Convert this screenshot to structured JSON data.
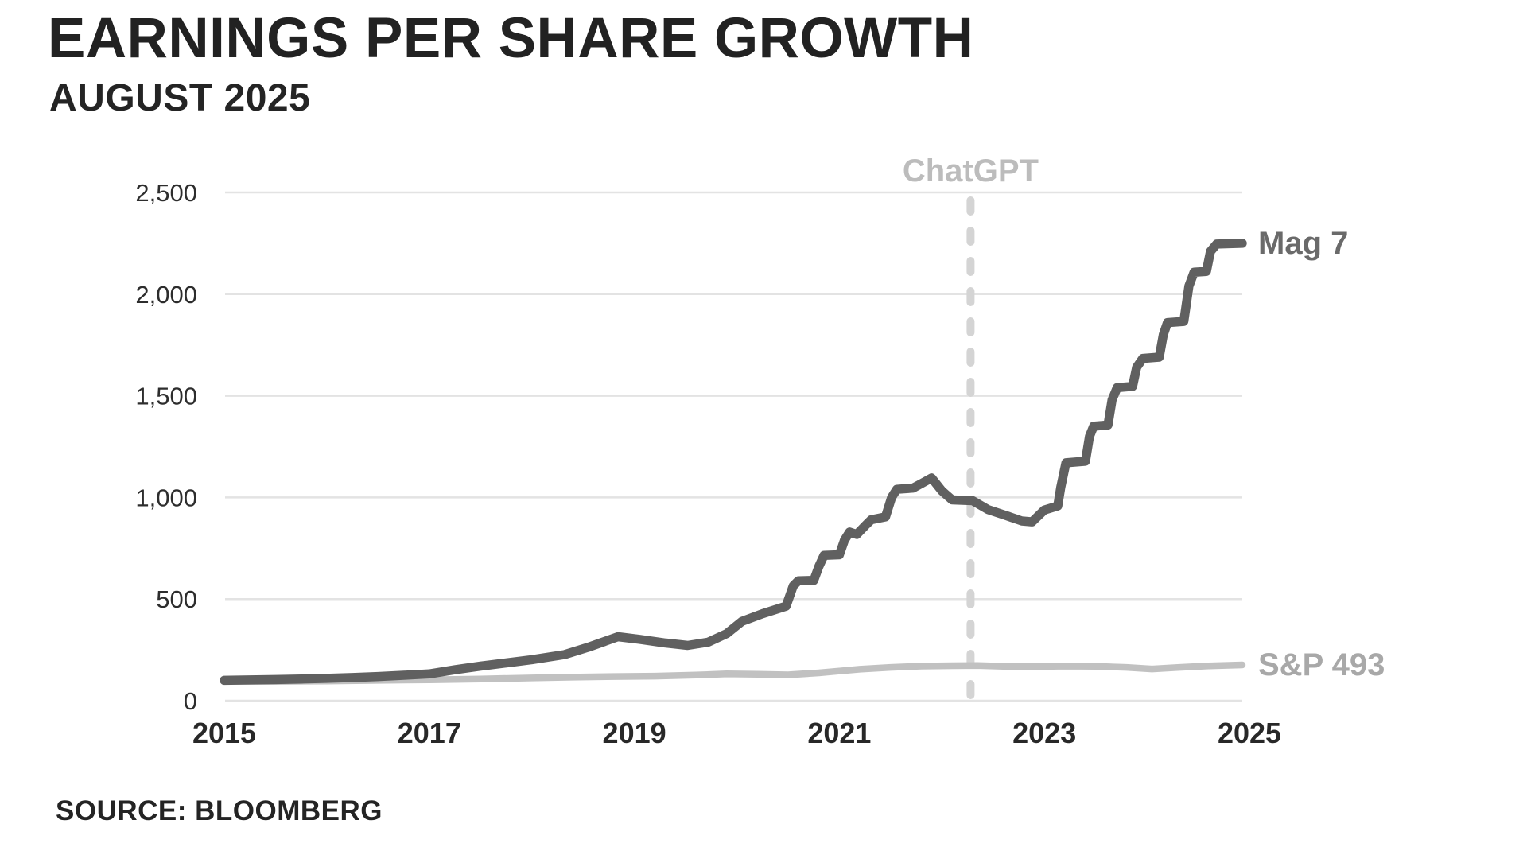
{
  "header": {
    "title": "EARNINGS PER SHARE GROWTH",
    "subtitle": "AUGUST 2025"
  },
  "footer": {
    "source": "SOURCE: BLOOMBERG"
  },
  "colors": {
    "background": "#ffffff",
    "grid": "#e3e3e3",
    "annotation_line": "#d4d4d4",
    "annotation_text": "#bcbcbc",
    "mag7_line": "#606060",
    "mag7_label": "#6a6a6a",
    "sp493_line": "#c1c1c1",
    "sp493_label": "#a8a8a8",
    "tick_text": "#2d2d2d"
  },
  "chart_data": {
    "type": "line",
    "title": "EARNINGS PER SHARE GROWTH",
    "subtitle": "AUGUST 2025",
    "source": "SOURCE: BLOOMBERG",
    "xlabel": "",
    "ylabel": "",
    "xlim": [
      2015,
      2024.95
    ],
    "ylim": [
      0,
      2500
    ],
    "grid": true,
    "legend_position": "inline-right",
    "x_ticks": [
      2015,
      2017,
      2019,
      2021,
      2023,
      2025
    ],
    "y_ticks": [
      0,
      500,
      1000,
      1500,
      2000,
      2500
    ],
    "y_tick_labels": [
      "0",
      "500",
      "1,000",
      "1,500",
      "2,000",
      "2,500"
    ],
    "annotation": {
      "label": "ChatGPT",
      "x": 2022.28,
      "style": "vertical-dashed-line"
    },
    "series": [
      {
        "name": "Mag 7",
        "points": [
          [
            2015.0,
            100
          ],
          [
            2015.25,
            102
          ],
          [
            2015.5,
            104
          ],
          [
            2015.75,
            107
          ],
          [
            2016.0,
            110
          ],
          [
            2016.25,
            114
          ],
          [
            2016.5,
            119
          ],
          [
            2016.75,
            125
          ],
          [
            2017.0,
            132
          ],
          [
            2017.25,
            152
          ],
          [
            2017.5,
            170
          ],
          [
            2017.75,
            186
          ],
          [
            2018.0,
            202
          ],
          [
            2018.32,
            227
          ],
          [
            2018.55,
            263
          ],
          [
            2018.84,
            315
          ],
          [
            2019.05,
            302
          ],
          [
            2019.3,
            284
          ],
          [
            2019.52,
            272
          ],
          [
            2019.72,
            288
          ],
          [
            2019.9,
            330
          ],
          [
            2020.05,
            390
          ],
          [
            2020.25,
            428
          ],
          [
            2020.48,
            465
          ],
          [
            2020.55,
            565
          ],
          [
            2020.6,
            590
          ],
          [
            2020.75,
            592
          ],
          [
            2020.8,
            660
          ],
          [
            2020.85,
            715
          ],
          [
            2021.0,
            718
          ],
          [
            2021.05,
            790
          ],
          [
            2021.1,
            830
          ],
          [
            2021.17,
            818
          ],
          [
            2021.25,
            860
          ],
          [
            2021.31,
            890
          ],
          [
            2021.45,
            904
          ],
          [
            2021.51,
            1000
          ],
          [
            2021.56,
            1040
          ],
          [
            2021.72,
            1046
          ],
          [
            2021.8,
            1068
          ],
          [
            2021.9,
            1096
          ],
          [
            2022.0,
            1032
          ],
          [
            2022.1,
            988
          ],
          [
            2022.3,
            984
          ],
          [
            2022.45,
            940
          ],
          [
            2022.62,
            912
          ],
          [
            2022.78,
            884
          ],
          [
            2022.88,
            880
          ],
          [
            2023.0,
            938
          ],
          [
            2023.13,
            958
          ],
          [
            2023.16,
            1050
          ],
          [
            2023.21,
            1170
          ],
          [
            2023.4,
            1178
          ],
          [
            2023.44,
            1300
          ],
          [
            2023.48,
            1350
          ],
          [
            2023.62,
            1356
          ],
          [
            2023.66,
            1480
          ],
          [
            2023.71,
            1540
          ],
          [
            2023.86,
            1546
          ],
          [
            2023.9,
            1640
          ],
          [
            2023.96,
            1684
          ],
          [
            2024.12,
            1690
          ],
          [
            2024.16,
            1800
          ],
          [
            2024.2,
            1860
          ],
          [
            2024.36,
            1866
          ],
          [
            2024.41,
            2040
          ],
          [
            2024.46,
            2108
          ],
          [
            2024.58,
            2112
          ],
          [
            2024.62,
            2210
          ],
          [
            2024.68,
            2246
          ],
          [
            2024.93,
            2250
          ]
        ]
      },
      {
        "name": "S&P 493",
        "points": [
          [
            2015.0,
            96
          ],
          [
            2015.5,
            95
          ],
          [
            2016.0,
            97
          ],
          [
            2016.5,
            100
          ],
          [
            2017.0,
            103
          ],
          [
            2017.5,
            107
          ],
          [
            2018.0,
            112
          ],
          [
            2018.4,
            116
          ],
          [
            2018.8,
            119
          ],
          [
            2019.2,
            121
          ],
          [
            2019.6,
            126
          ],
          [
            2019.9,
            132
          ],
          [
            2020.2,
            130
          ],
          [
            2020.5,
            127
          ],
          [
            2020.8,
            137
          ],
          [
            2021.0,
            146
          ],
          [
            2021.2,
            155
          ],
          [
            2021.5,
            164
          ],
          [
            2021.8,
            170
          ],
          [
            2022.1,
            172
          ],
          [
            2022.35,
            173
          ],
          [
            2022.6,
            169
          ],
          [
            2022.9,
            168
          ],
          [
            2023.2,
            170
          ],
          [
            2023.5,
            169
          ],
          [
            2023.8,
            164
          ],
          [
            2024.05,
            156
          ],
          [
            2024.3,
            163
          ],
          [
            2024.6,
            171
          ],
          [
            2024.93,
            176
          ]
        ]
      }
    ]
  }
}
